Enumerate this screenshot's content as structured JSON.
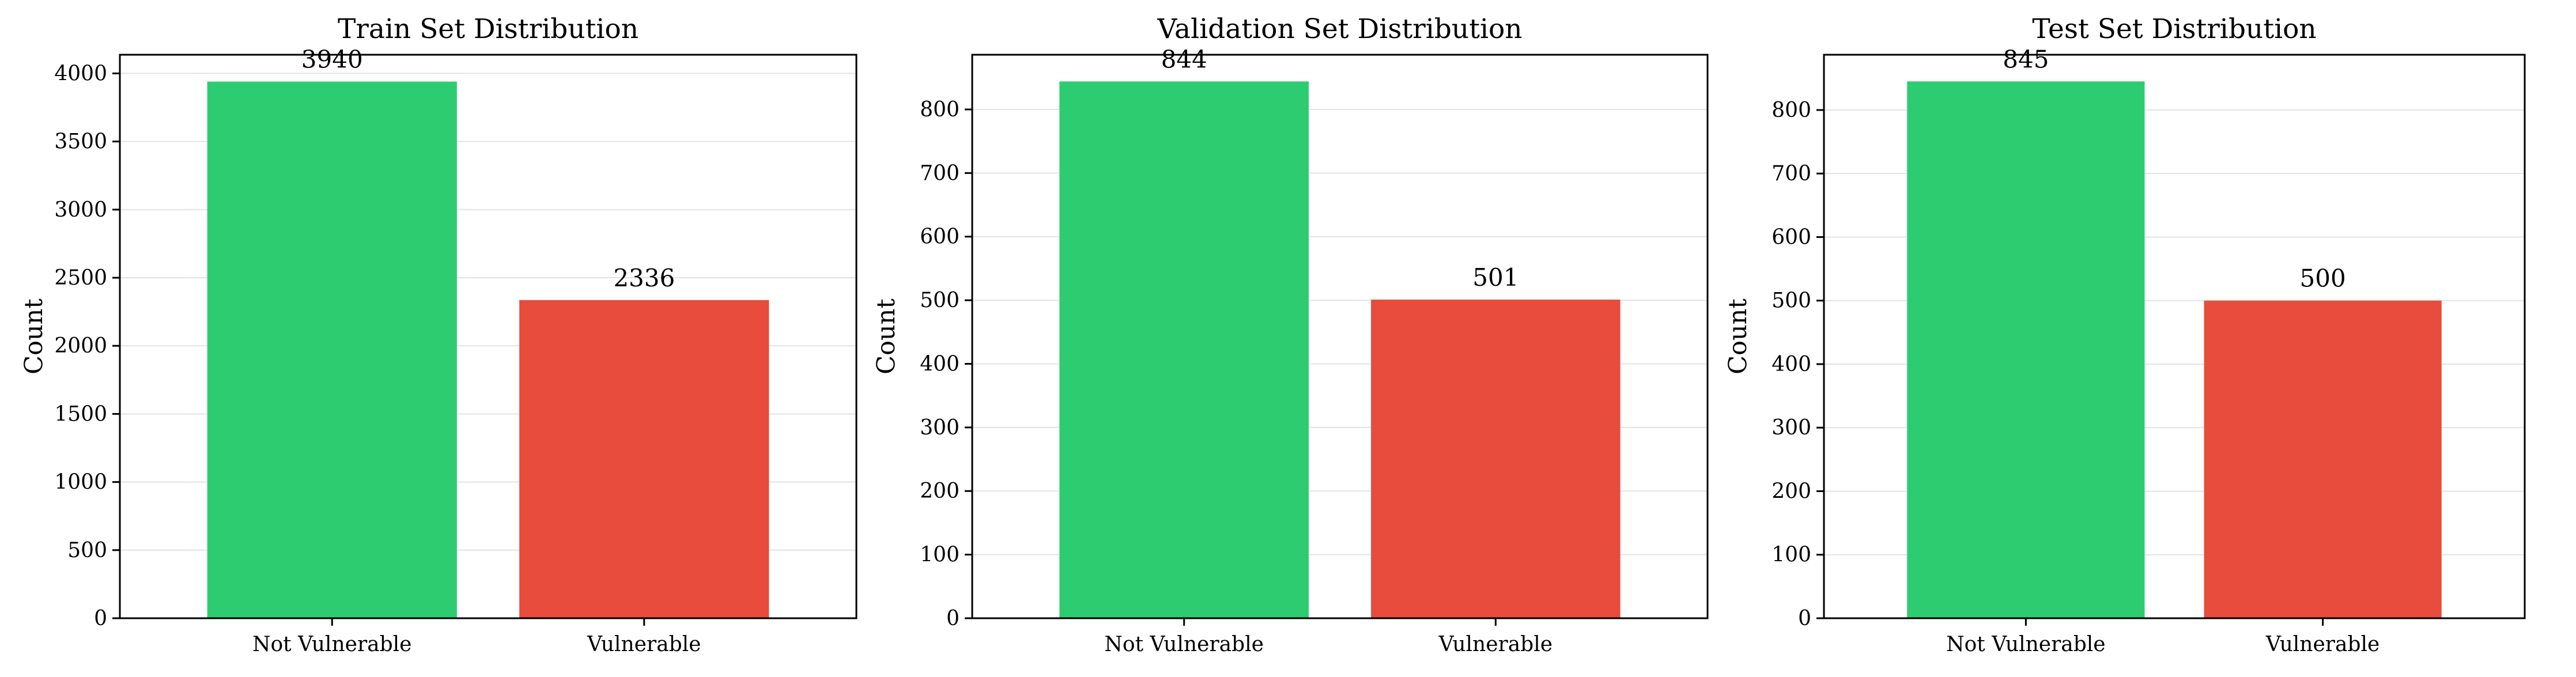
{
  "colors": {
    "not_vulnerable": "#2ecc71",
    "vulnerable": "#e74c3c",
    "grid": "#e3e3e3",
    "axis": "#000000"
  },
  "chart_data": [
    {
      "type": "bar",
      "title": "Train Set Distribution",
      "xlabel": "",
      "ylabel": "Count",
      "categories": [
        "Not Vulnerable",
        "Vulnerable"
      ],
      "values": [
        3940,
        2336
      ],
      "data_labels": [
        "3940",
        "2336"
      ],
      "ylim": [
        0,
        4137
      ],
      "yticks": [
        0,
        500,
        1000,
        1500,
        2000,
        2500,
        3000,
        3500,
        4000
      ],
      "grid": "y"
    },
    {
      "type": "bar",
      "title": "Validation Set Distribution",
      "xlabel": "",
      "ylabel": "Count",
      "categories": [
        "Not Vulnerable",
        "Vulnerable"
      ],
      "values": [
        844,
        501
      ],
      "data_labels": [
        "844",
        "501"
      ],
      "ylim": [
        0,
        886
      ],
      "yticks": [
        0,
        100,
        200,
        300,
        400,
        500,
        600,
        700,
        800
      ],
      "grid": "y"
    },
    {
      "type": "bar",
      "title": "Test Set Distribution",
      "xlabel": "",
      "ylabel": "Count",
      "categories": [
        "Not Vulnerable",
        "Vulnerable"
      ],
      "values": [
        845,
        500
      ],
      "data_labels": [
        "845",
        "500"
      ],
      "ylim": [
        0,
        887
      ],
      "yticks": [
        0,
        100,
        200,
        300,
        400,
        500,
        600,
        700,
        800
      ],
      "grid": "y"
    }
  ]
}
